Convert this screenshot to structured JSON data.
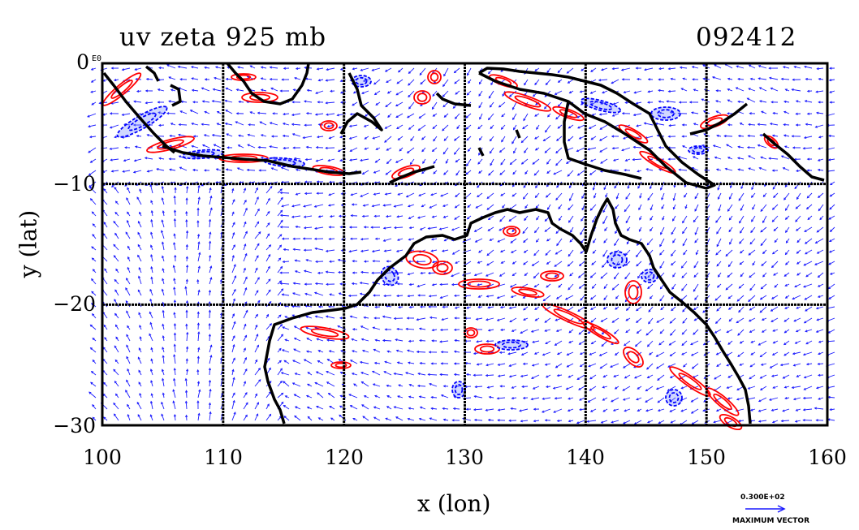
{
  "title": "uv zeta 925 mb",
  "time_label": "092412",
  "x_axis": {
    "label": "x (lon)",
    "ticks": [
      "100",
      "110",
      "120",
      "130",
      "140",
      "150",
      "160"
    ],
    "range": [
      100,
      160
    ]
  },
  "y_axis": {
    "label": "y (lat)",
    "ticks": [
      "0",
      "−10",
      "−20",
      "−30"
    ],
    "range": [
      -30,
      0
    ]
  },
  "corner_label": "E0",
  "reference_vector": {
    "value": "0.300E+02",
    "caption": "MAXIMUM VECTOR"
  },
  "colors": {
    "vectors": "#1a1aff",
    "positive_vorticity": "#ff0000",
    "negative_vorticity": "#0000ff",
    "coastline": "#000000",
    "grid": "#000000"
  },
  "map_layers": [
    "wind-vectors",
    "vorticity-contours",
    "coastline",
    "lat-lon-grid"
  ]
}
